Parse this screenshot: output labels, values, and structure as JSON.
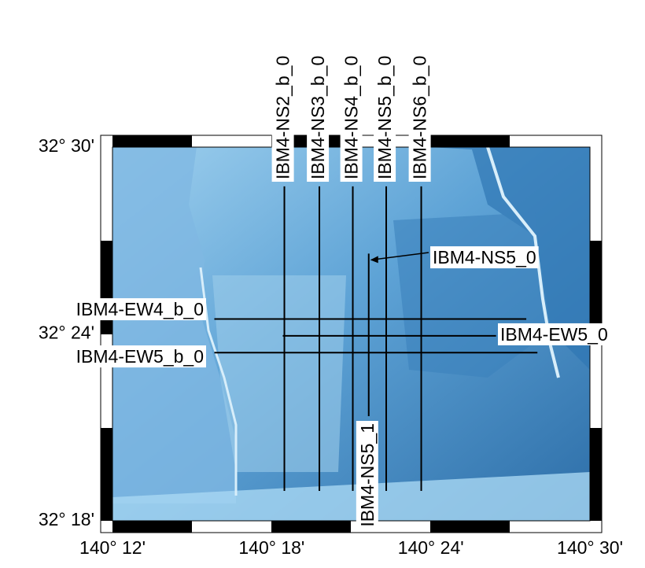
{
  "map": {
    "lon_ticks": [
      {
        "value": 140.2,
        "label": "140° 12'"
      },
      {
        "value": 140.3,
        "label": "140° 18'"
      },
      {
        "value": 140.4,
        "label": "140° 24'"
      },
      {
        "value": 140.5,
        "label": "140° 30'"
      }
    ],
    "lat_ticks": [
      {
        "value": 32.5,
        "label": "32° 30'"
      },
      {
        "value": 32.4,
        "label": "32° 24'"
      },
      {
        "value": 32.3,
        "label": "32° 18'"
      }
    ],
    "lines": [
      {
        "name": "IBM4-NS2_b_0",
        "lon": [
          140.308,
          140.308
        ],
        "lat": [
          32.479,
          32.316
        ]
      },
      {
        "name": "IBM4-NS3_b_0",
        "lon": [
          140.33,
          140.33
        ],
        "lat": [
          32.479,
          32.316
        ]
      },
      {
        "name": "IBM4-NS4_b_0",
        "lon": [
          140.351,
          140.351
        ],
        "lat": [
          32.479,
          32.316
        ]
      },
      {
        "name": "IBM4-NS5_b_0",
        "lon": [
          140.372,
          140.372
        ],
        "lat": [
          32.479,
          32.316
        ]
      },
      {
        "name": "IBM4-NS6_b_0",
        "lon": [
          140.394,
          140.394
        ],
        "lat": [
          32.479,
          32.316
        ]
      },
      {
        "name": "IBM4-NS5_0",
        "lon": [
          140.361,
          140.361
        ],
        "lat": [
          32.443,
          32.4
        ]
      },
      {
        "name": "IBM4-NS5_1",
        "lon": [
          140.361,
          140.361
        ],
        "lat": [
          32.4,
          32.356
        ]
      },
      {
        "name": "IBM4-EW4_b_0",
        "lon": [
          140.264,
          140.46
        ],
        "lat": [
          32.408,
          32.408
        ]
      },
      {
        "name": "IBM4-EW5_0",
        "lon": [
          140.307,
          140.441
        ],
        "lat": [
          32.399,
          32.399
        ]
      },
      {
        "name": "IBM4-EW5_b_0",
        "lon": [
          140.264,
          140.467
        ],
        "lat": [
          32.39,
          32.39
        ]
      }
    ]
  }
}
